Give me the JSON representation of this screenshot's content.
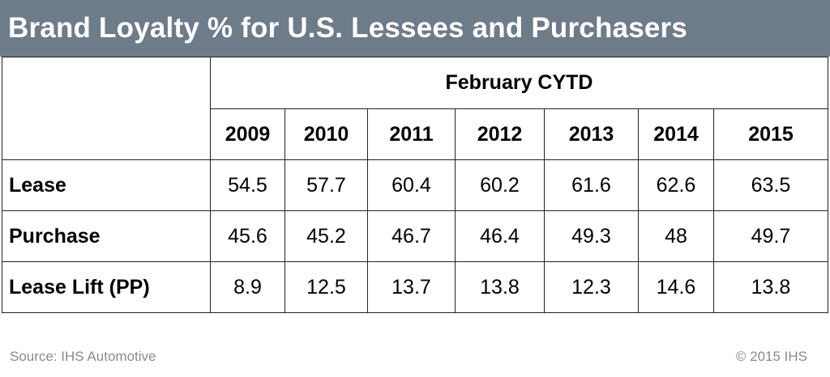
{
  "chart_data": {
    "type": "table",
    "title": "Brand Loyalty % for U.S. Lessees and Purchasers",
    "period_label": "February CYTD",
    "categories": [
      "2009",
      "2010",
      "2011",
      "2012",
      "2013",
      "2014",
      "2015"
    ],
    "series": [
      {
        "name": "Lease",
        "values": [
          "54.5",
          "57.7",
          "60.4",
          "60.2",
          "61.6",
          "62.6",
          "63.5"
        ]
      },
      {
        "name": "Purchase",
        "values": [
          "45.6",
          "45.2",
          "46.7",
          "46.4",
          "49.3",
          "48",
          "49.7"
        ]
      },
      {
        "name": "Lease Lift (PP)",
        "values": [
          "8.9",
          "12.5",
          "13.7",
          "13.8",
          "12.3",
          "14.6",
          "13.8"
        ]
      }
    ]
  },
  "footer": {
    "source": "Source: IHS Automotive",
    "copyright": "© 2015 IHS"
  },
  "colors": {
    "title_bar": "#6e7c8a",
    "title_text": "#ffffff",
    "footer_text": "#8a8a8a",
    "grid": "#222222"
  }
}
